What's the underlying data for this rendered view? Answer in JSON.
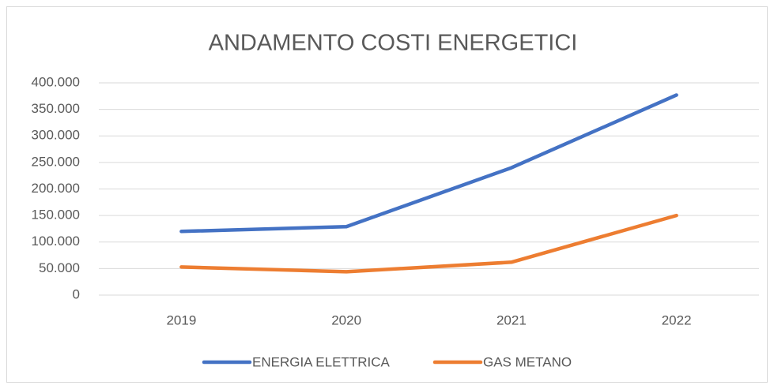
{
  "chart_data": {
    "type": "line",
    "title": "ANDAMENTO COSTI ENERGETICI",
    "categories": [
      "2019",
      "2020",
      "2021",
      "2022"
    ],
    "series": [
      {
        "name": "ENERGIA ELETTRICA",
        "color": "#4472c4",
        "values": [
          120000,
          129000,
          240000,
          377000
        ]
      },
      {
        "name": "GAS METANO",
        "color": "#ed7d31",
        "values": [
          53000,
          44000,
          62000,
          150000
        ]
      }
    ],
    "ylim": [
      0,
      400000
    ],
    "yticks": [
      0,
      {
        "value": 50000,
        "label": "50.000"
      },
      {
        "value": 100000,
        "label": "100.000"
      },
      {
        "value": 150000,
        "label": "150.000"
      },
      {
        "value": 200000,
        "label": "200.000"
      },
      {
        "value": 250000,
        "label": "250.000"
      },
      {
        "value": 300000,
        "label": "300.000"
      },
      {
        "value": 350000,
        "label": "350.000"
      },
      {
        "value": 400000,
        "label": "400.000"
      }
    ],
    "grid": true,
    "legend": "bottom"
  }
}
